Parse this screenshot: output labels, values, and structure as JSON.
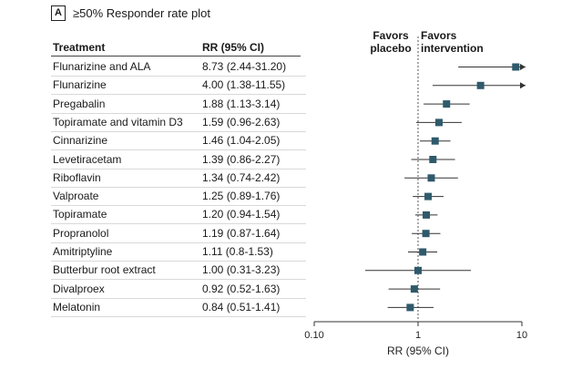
{
  "panel": {
    "letter": "A",
    "title": "≥50% Responder rate plot"
  },
  "table": {
    "col_treatment": "Treatment",
    "col_rr": "RR (95% CI)"
  },
  "favors": {
    "left": "Favors\nplacebo",
    "right": "Favors\nintervention"
  },
  "chart_data": {
    "type": "forest",
    "title": "≥50% Responder rate plot",
    "xlabel": "RR (95% CI)",
    "x_scale": "log",
    "xlim": [
      0.1,
      10
    ],
    "xticks": [
      "0.10",
      "1",
      "10"
    ],
    "reference_line": 1,
    "rows": [
      {
        "treatment": "Flunarizine and ALA",
        "rr_text": "8.73 (2.44-31.20)",
        "rr": 8.73,
        "lo": 2.44,
        "hi": 31.2
      },
      {
        "treatment": "Flunarizine",
        "rr_text": "4.00 (1.38-11.55)",
        "rr": 4.0,
        "lo": 1.38,
        "hi": 11.55
      },
      {
        "treatment": "Pregabalin",
        "rr_text": "1.88 (1.13-3.14)",
        "rr": 1.88,
        "lo": 1.13,
        "hi": 3.14
      },
      {
        "treatment": "Topiramate and vitamin D3",
        "rr_text": "1.59 (0.96-2.63)",
        "rr": 1.59,
        "lo": 0.96,
        "hi": 2.63
      },
      {
        "treatment": "Cinnarizine",
        "rr_text": "1.46 (1.04-2.05)",
        "rr": 1.46,
        "lo": 1.04,
        "hi": 2.05
      },
      {
        "treatment": "Levetiracetam",
        "rr_text": "1.39 (0.86-2.27)",
        "rr": 1.39,
        "lo": 0.86,
        "hi": 2.27
      },
      {
        "treatment": "Riboflavin",
        "rr_text": "1.34 (0.74-2.42)",
        "rr": 1.34,
        "lo": 0.74,
        "hi": 2.42
      },
      {
        "treatment": "Valproate",
        "rr_text": "1.25 (0.89-1.76)",
        "rr": 1.25,
        "lo": 0.89,
        "hi": 1.76
      },
      {
        "treatment": "Topiramate",
        "rr_text": "1.20 (0.94-1.54)",
        "rr": 1.2,
        "lo": 0.94,
        "hi": 1.54
      },
      {
        "treatment": "Propranolol",
        "rr_text": "1.19 (0.87-1.64)",
        "rr": 1.19,
        "lo": 0.87,
        "hi": 1.64
      },
      {
        "treatment": "Amitriptyline",
        "rr_text": "1.11 (0.8-1.53)",
        "rr": 1.11,
        "lo": 0.8,
        "hi": 1.53
      },
      {
        "treatment": "Butterbur root extract",
        "rr_text": "1.00 (0.31-3.23)",
        "rr": 1.0,
        "lo": 0.31,
        "hi": 3.23
      },
      {
        "treatment": "Divalproex",
        "rr_text": "0.92 (0.52-1.63)",
        "rr": 0.92,
        "lo": 0.52,
        "hi": 1.63
      },
      {
        "treatment": "Melatonin",
        "rr_text": "0.84 (0.51-1.41)",
        "rr": 0.84,
        "lo": 0.51,
        "hi": 1.41
      }
    ],
    "colors": {
      "marker": "#2f5a6c",
      "line": "#333333",
      "ref": "#555555"
    }
  }
}
